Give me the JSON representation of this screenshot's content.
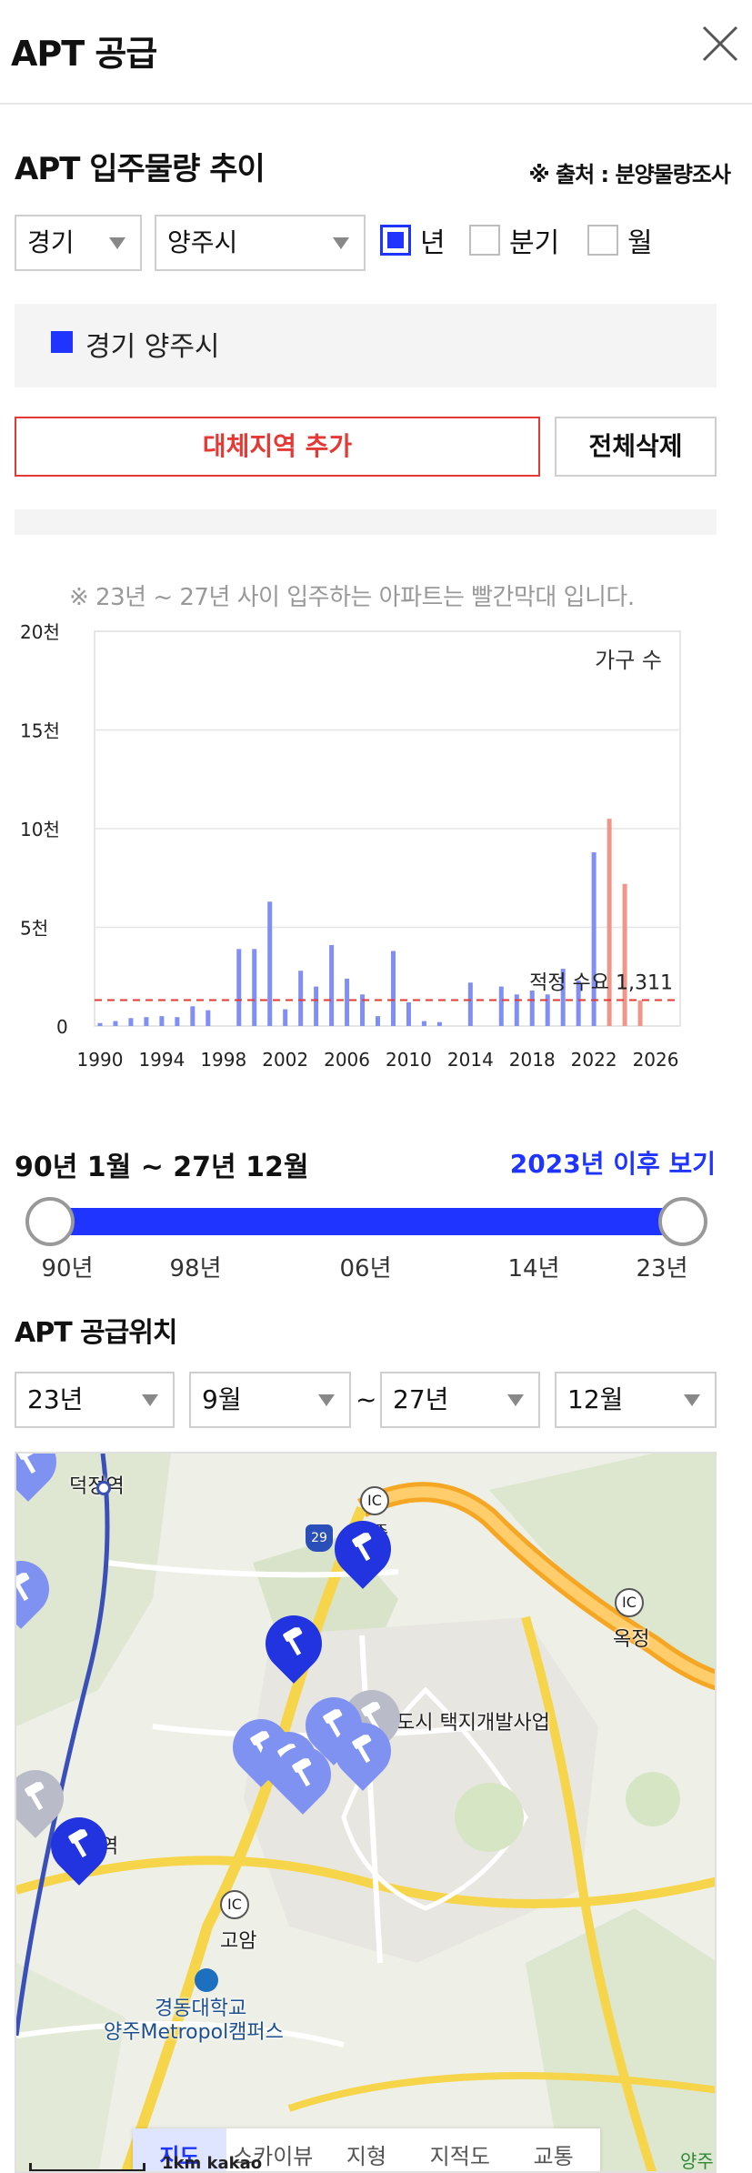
{
  "header": {
    "title": "APT 공급"
  },
  "supply_trend": {
    "title": "APT 입주물량 추이",
    "source": "※ 출처 : 분양물량조사",
    "province": "경기",
    "city": "양주시",
    "period_options": [
      {
        "label": "년",
        "checked": true
      },
      {
        "label": "분기",
        "checked": false
      },
      {
        "label": "월",
        "checked": false
      }
    ],
    "region_legend": "경기 양주시",
    "add_button": "대체지역 추가",
    "delete_button": "전체삭제",
    "note": "※ 23년 ~ 27년 사이 입주하는 아파트는 빨간막대 입니다."
  },
  "chart_data": {
    "type": "bar",
    "unit_label": "가구 수",
    "y_ticks": [
      "0",
      "5천",
      "10천",
      "15천",
      "20천"
    ],
    "ylim": [
      0,
      20000
    ],
    "x_ticks": [
      "1990",
      "1994",
      "1998",
      "2002",
      "2006",
      "2010",
      "2014",
      "2018",
      "2022",
      "2026"
    ],
    "xlim": [
      1990,
      2027
    ],
    "reference_line": {
      "label": "적정 수요 1,311",
      "value": 1311,
      "color": "#e53935"
    },
    "colors": {
      "past": "#7f8ff5",
      "future": "#f0958a"
    },
    "series": [
      {
        "name": "경기 양주시",
        "x": [
          1990,
          1991,
          1992,
          1993,
          1994,
          1995,
          1996,
          1997,
          1999,
          2000,
          2001,
          2002,
          2003,
          2004,
          2005,
          2006,
          2007,
          2008,
          2009,
          2010,
          2011,
          2012,
          2014,
          2016,
          2017,
          2018,
          2019,
          2020,
          2021,
          2022,
          2023,
          2024,
          2025
        ],
        "values": [
          150,
          250,
          400,
          450,
          500,
          450,
          1000,
          800,
          3900,
          3900,
          6300,
          850,
          2800,
          2000,
          4100,
          2400,
          1600,
          500,
          3800,
          1200,
          250,
          200,
          2200,
          2000,
          1600,
          1800,
          1600,
          2900,
          2300,
          8800,
          10500,
          7200,
          1300
        ]
      }
    ]
  },
  "range": {
    "label": "90년 1월 ~ 27년 12월",
    "after_link": "2023년 이후 보기",
    "ticks": [
      "90년",
      "98년",
      "06년",
      "14년",
      "23년"
    ]
  },
  "supply_location": {
    "title": "APT 공급위치",
    "from_year": "23년",
    "from_month": "9월",
    "separator": "~",
    "to_year": "27년",
    "to_month": "12월"
  },
  "map": {
    "labels": {
      "station": "덕정역",
      "ic_top": "IC",
      "yangju_small": "양주",
      "road_29": "29",
      "ic_right": "IC",
      "okjeong": "옥정",
      "project": "도시 택지개발사업",
      "ic_left": "IC",
      "goam": "고암",
      "univ1": "경동대학교",
      "univ2": "양주Metropol캠퍼스",
      "station2": "역",
      "yangju_corner": "양주"
    },
    "scale": "1km",
    "brand": "kakao",
    "tabs": [
      {
        "label": "지도",
        "active": true
      },
      {
        "label": "스카이뷰",
        "active": false
      },
      {
        "label": "지형",
        "active": false
      },
      {
        "label": "지적도",
        "active": false
      },
      {
        "label": "교통",
        "active": false
      }
    ]
  }
}
